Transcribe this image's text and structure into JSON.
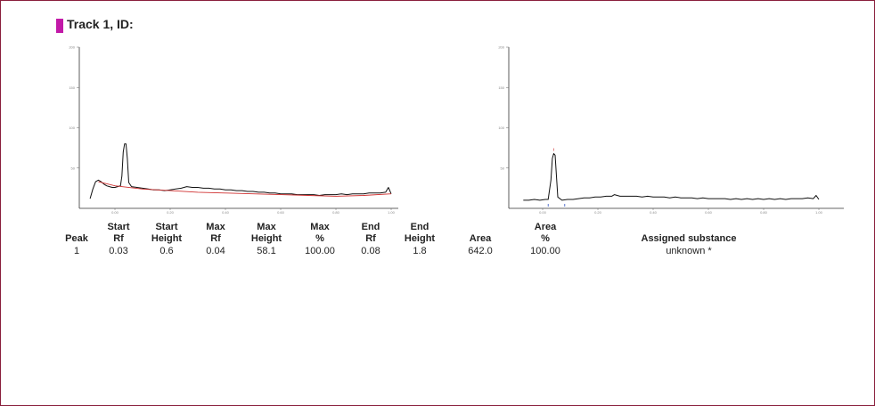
{
  "track_title": "Track 1, ID:",
  "colors": {
    "accent": "#c21aa8",
    "trace": "#111111",
    "baseline": "#d03030",
    "border": "#8a1f3c"
  },
  "chart_data": [
    {
      "type": "line",
      "title": "",
      "xlim": [
        -0.1,
        1.05
      ],
      "ylim": [
        0,
        200
      ],
      "x_ticks": [
        "0.00",
        "0.20",
        "0.40",
        "0.60",
        "0.80",
        "1.00"
      ],
      "y_ticks": [
        "200",
        "150",
        "100",
        "50"
      ],
      "series": [
        {
          "values": [
            [
              -0.09,
              12
            ],
            [
              -0.08,
              24
            ],
            [
              -0.07,
              33
            ],
            [
              -0.06,
              35
            ],
            [
              -0.05,
              33
            ],
            [
              -0.04,
              30
            ],
            [
              -0.03,
              28
            ],
            [
              -0.02,
              27
            ],
            [
              -0.01,
              26
            ],
            [
              0.0,
              26
            ],
            [
              0.01,
              27
            ],
            [
              0.02,
              28
            ],
            [
              0.025,
              40
            ],
            [
              0.03,
              70
            ],
            [
              0.035,
              80
            ],
            [
              0.04,
              80
            ],
            [
              0.045,
              62
            ],
            [
              0.05,
              32
            ],
            [
              0.06,
              27
            ],
            [
              0.08,
              26
            ],
            [
              0.1,
              25
            ],
            [
              0.12,
              24
            ],
            [
              0.14,
              23
            ],
            [
              0.16,
              23
            ],
            [
              0.18,
              22
            ],
            [
              0.2,
              23
            ],
            [
              0.22,
              24
            ],
            [
              0.24,
              25
            ],
            [
              0.26,
              27
            ],
            [
              0.28,
              26
            ],
            [
              0.3,
              26
            ],
            [
              0.32,
              25
            ],
            [
              0.34,
              25
            ],
            [
              0.36,
              24
            ],
            [
              0.38,
              24
            ],
            [
              0.4,
              23
            ],
            [
              0.42,
              23
            ],
            [
              0.44,
              22
            ],
            [
              0.46,
              22
            ],
            [
              0.48,
              21
            ],
            [
              0.5,
              21
            ],
            [
              0.52,
              20
            ],
            [
              0.54,
              20
            ],
            [
              0.56,
              19
            ],
            [
              0.58,
              19
            ],
            [
              0.6,
              18
            ],
            [
              0.62,
              18
            ],
            [
              0.64,
              18
            ],
            [
              0.66,
              17
            ],
            [
              0.68,
              17
            ],
            [
              0.7,
              17
            ],
            [
              0.72,
              17
            ],
            [
              0.74,
              16
            ],
            [
              0.76,
              17
            ],
            [
              0.78,
              17
            ],
            [
              0.8,
              17
            ],
            [
              0.82,
              18
            ],
            [
              0.84,
              17
            ],
            [
              0.86,
              18
            ],
            [
              0.88,
              18
            ],
            [
              0.9,
              18
            ],
            [
              0.92,
              19
            ],
            [
              0.94,
              19
            ],
            [
              0.96,
              19
            ],
            [
              0.98,
              20
            ],
            [
              0.99,
              26
            ],
            [
              1.0,
              18
            ]
          ]
        },
        {
          "values": [
            [
              -0.06,
              33
            ],
            [
              0.0,
              28
            ],
            [
              0.1,
              24
            ],
            [
              0.2,
              22
            ],
            [
              0.3,
              20
            ],
            [
              0.4,
              19
            ],
            [
              0.5,
              18
            ],
            [
              0.6,
              17
            ],
            [
              0.7,
              16
            ],
            [
              0.8,
              15
            ],
            [
              0.9,
              16
            ],
            [
              1.0,
              18
            ]
          ]
        }
      ]
    },
    {
      "type": "line",
      "title": "",
      "xlim": [
        -0.1,
        1.05
      ],
      "ylim": [
        0,
        200
      ],
      "x_ticks": [
        "0.00",
        "0.20",
        "0.40",
        "0.60",
        "0.80",
        "1.00"
      ],
      "y_ticks": [
        "200",
        "150",
        "100",
        "50"
      ],
      "series": [
        {
          "values": [
            [
              -0.07,
              10
            ],
            [
              -0.05,
              10
            ],
            [
              -0.03,
              11
            ],
            [
              -0.01,
              10
            ],
            [
              0.01,
              11
            ],
            [
              0.02,
              11
            ],
            [
              0.03,
              35
            ],
            [
              0.035,
              62
            ],
            [
              0.04,
              68
            ],
            [
              0.045,
              66
            ],
            [
              0.05,
              40
            ],
            [
              0.055,
              14
            ],
            [
              0.07,
              10
            ],
            [
              0.09,
              11
            ],
            [
              0.11,
              11
            ],
            [
              0.13,
              12
            ],
            [
              0.15,
              13
            ],
            [
              0.17,
              13
            ],
            [
              0.19,
              14
            ],
            [
              0.21,
              14
            ],
            [
              0.23,
              15
            ],
            [
              0.25,
              15
            ],
            [
              0.26,
              17
            ],
            [
              0.28,
              15
            ],
            [
              0.3,
              15
            ],
            [
              0.32,
              15
            ],
            [
              0.34,
              15
            ],
            [
              0.36,
              14
            ],
            [
              0.38,
              15
            ],
            [
              0.4,
              14
            ],
            [
              0.42,
              14
            ],
            [
              0.44,
              14
            ],
            [
              0.46,
              13
            ],
            [
              0.48,
              14
            ],
            [
              0.5,
              13
            ],
            [
              0.52,
              13
            ],
            [
              0.54,
              13
            ],
            [
              0.56,
              12
            ],
            [
              0.58,
              13
            ],
            [
              0.6,
              12
            ],
            [
              0.62,
              12
            ],
            [
              0.64,
              12
            ],
            [
              0.66,
              12
            ],
            [
              0.68,
              11
            ],
            [
              0.7,
              12
            ],
            [
              0.72,
              11
            ],
            [
              0.74,
              12
            ],
            [
              0.76,
              11
            ],
            [
              0.78,
              12
            ],
            [
              0.8,
              11
            ],
            [
              0.82,
              12
            ],
            [
              0.84,
              11
            ],
            [
              0.86,
              12
            ],
            [
              0.88,
              11
            ],
            [
              0.9,
              12
            ],
            [
              0.92,
              12
            ],
            [
              0.94,
              12
            ],
            [
              0.96,
              13
            ],
            [
              0.98,
              12
            ],
            [
              0.99,
              16
            ],
            [
              1.0,
              11
            ]
          ]
        }
      ]
    }
  ],
  "table": {
    "headers": [
      {
        "top": "",
        "bottom": "Peak"
      },
      {
        "top": "Start",
        "bottom": "Rf"
      },
      {
        "top": "Start",
        "bottom": "Height"
      },
      {
        "top": "Max",
        "bottom": "Rf"
      },
      {
        "top": "Max",
        "bottom": "Height"
      },
      {
        "top": "Max",
        "bottom": "%"
      },
      {
        "top": "End",
        "bottom": "Rf"
      },
      {
        "top": "End",
        "bottom": "Height"
      },
      {
        "top": "",
        "bottom": "Area"
      },
      {
        "top": "Area",
        "bottom": "%"
      },
      {
        "top": "",
        "bottom": "Assigned substance"
      }
    ],
    "rows": [
      [
        "1",
        "0.03",
        "0.6",
        "0.04",
        "58.1",
        "100.00",
        "0.08",
        "1.8",
        "642.0",
        "100.00",
        "unknown *"
      ]
    ]
  }
}
